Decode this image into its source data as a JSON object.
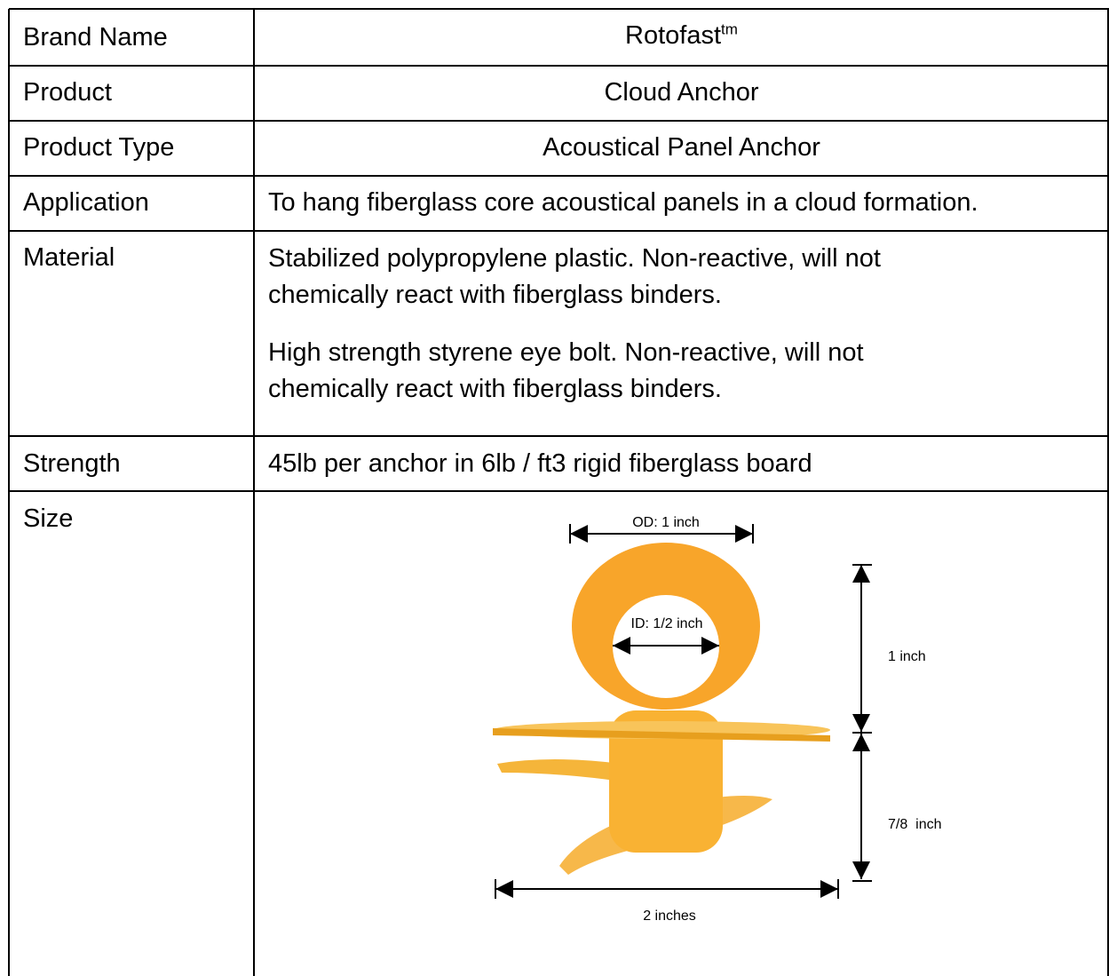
{
  "table": {
    "rows": [
      {
        "label": "Brand Name",
        "value": "Rotofast",
        "superscript": "tm"
      },
      {
        "label": "Product",
        "value": "Cloud Anchor"
      },
      {
        "label": "Product Type",
        "value": "Acoustical Panel Anchor"
      },
      {
        "label": "Application",
        "value": "To hang fiberglass core acoustical panels in a cloud formation."
      },
      {
        "label": "Material",
        "paragraphs": [
          "Stabilized polypropylene plastic. Non-reactive, will not\nchemically react with fiberglass binders.",
          "High strength styrene eye bolt.  Non-reactive, will not\nchemically react with fiberglass binders."
        ]
      },
      {
        "label": "Strength",
        "value": "45lb per anchor in 6lb / ft3 rigid fiberglass board"
      },
      {
        "label": "Size",
        "diagram": {
          "outer_diameter": "OD: 1 inch",
          "inner_diameter": "ID: 1/2 inch",
          "top_height": "1 inch",
          "bottom_height": "7/8  inch",
          "width": "2 inches"
        }
      }
    ]
  }
}
